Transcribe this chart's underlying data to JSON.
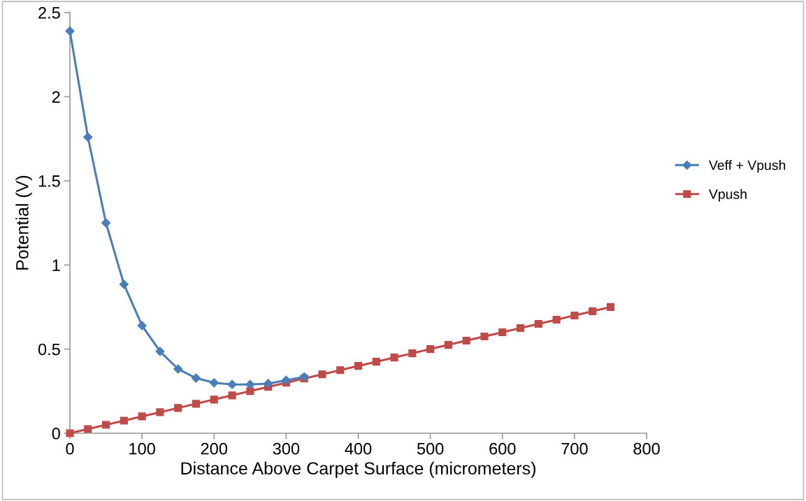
{
  "chart_data": {
    "type": "line",
    "xlabel": "Distance Above Carpet Surface (micrometers)",
    "ylabel": "Potential (V)",
    "xlim": [
      0,
      800
    ],
    "xticks": [
      0,
      100,
      200,
      300,
      400,
      500,
      600,
      700,
      800
    ],
    "ylim": [
      0,
      2.5
    ],
    "yticks": [
      0,
      0.5,
      1,
      1.5,
      2,
      2.5
    ],
    "grid": false,
    "legend": "right",
    "line_style": "solid",
    "series": [
      {
        "name": "Veff + Vpush",
        "color": "#4a7ebb",
        "marker": "diamond",
        "x": [
          0,
          25,
          50,
          75,
          100,
          125,
          150,
          175,
          200,
          225,
          250,
          275,
          300,
          325
        ],
        "values": [
          2.39,
          1.76,
          1.25,
          0.885,
          0.64,
          0.486,
          0.382,
          0.328,
          0.3,
          0.29,
          0.29,
          0.295,
          0.315,
          0.335
        ]
      },
      {
        "name": "Vpush",
        "color": "#be4b48",
        "marker": "square",
        "x": [
          0,
          25,
          50,
          75,
          100,
          125,
          150,
          175,
          200,
          225,
          250,
          275,
          300,
          325,
          350,
          375,
          400,
          425,
          450,
          475,
          500,
          525,
          550,
          575,
          600,
          625,
          650,
          675,
          700,
          725,
          750
        ],
        "values": [
          0,
          0.025,
          0.05,
          0.075,
          0.1,
          0.125,
          0.15,
          0.175,
          0.2,
          0.225,
          0.25,
          0.275,
          0.3,
          0.325,
          0.35,
          0.375,
          0.4,
          0.425,
          0.45,
          0.475,
          0.5,
          0.525,
          0.55,
          0.575,
          0.6,
          0.625,
          0.65,
          0.675,
          0.7,
          0.725,
          0.75
        ]
      }
    ]
  }
}
